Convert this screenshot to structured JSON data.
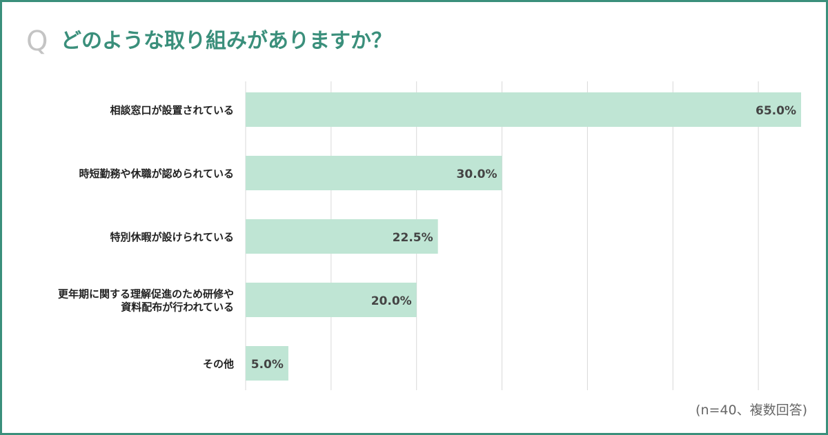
{
  "header": {
    "q_mark": "Q",
    "title": "どのような取り組みがありますか？"
  },
  "footnote": "(n=40、複数回答)",
  "colors": {
    "frame": "#3a8f7b",
    "title": "#3a8f7b",
    "bar": "#bfe5d4",
    "grid": "#d8d8d8",
    "label": "#222222",
    "value": "#444444"
  },
  "chart_data": {
    "type": "bar",
    "orientation": "horizontal",
    "categories": [
      [
        "相談窓口が設置されている"
      ],
      [
        "時短勤務や休職が認められている"
      ],
      [
        "特別休暇が設けられている"
      ],
      [
        "更年期に関する理解促進のため研修や",
        "資料配布が行われている"
      ],
      [
        "その他"
      ]
    ],
    "values": [
      65.0,
      30.0,
      22.5,
      20.0,
      5.0
    ],
    "value_labels": [
      "65.0%",
      "30.0%",
      "22.5%",
      "20.0%",
      "5.0%"
    ],
    "xlim": [
      0,
      65
    ],
    "grid_step": 10,
    "grid": true,
    "x_axis_labels_shown": false
  }
}
